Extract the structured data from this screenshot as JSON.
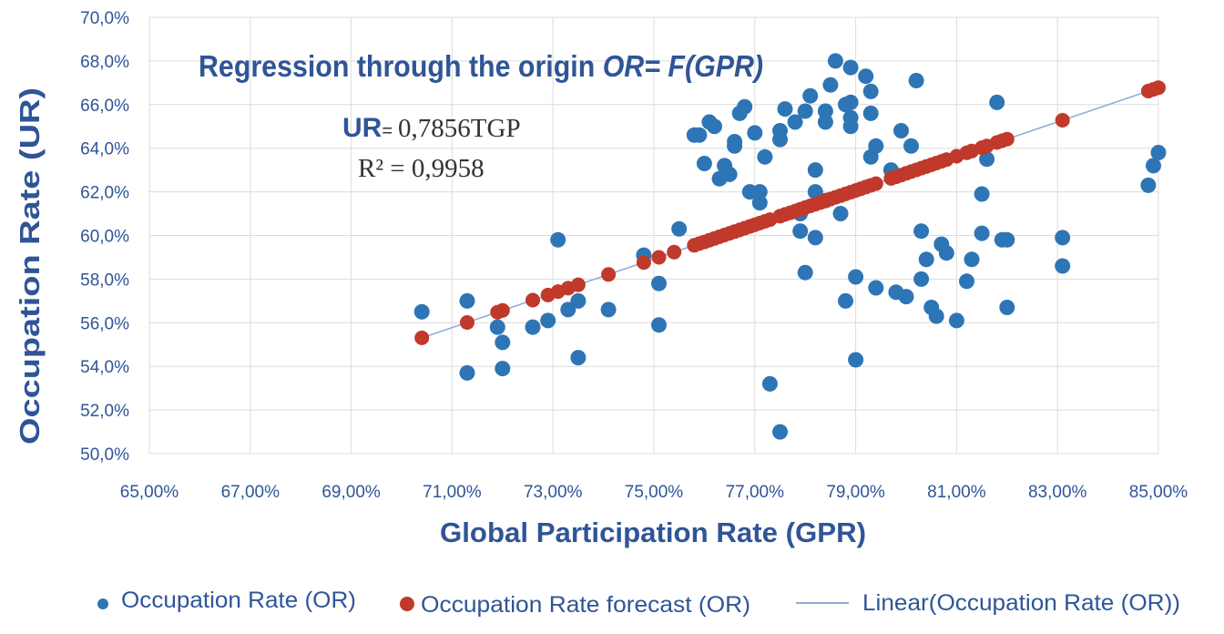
{
  "chart_data": {
    "type": "scatter",
    "title": "Regression through the origin",
    "title_formula": "OR= F(GPR)",
    "equation": {
      "lhs": "UR",
      "eq": "=",
      "rhs": "0,7856TGP",
      "r2_lhs": "R²",
      "r2_rhs": "= 0,9958"
    },
    "xlabel": "Global Participation  Rate (GPR)",
    "ylabel": "Occupation Rate  (UR)",
    "xlim": [
      65,
      85
    ],
    "ylim": [
      50,
      70
    ],
    "x_ticks": [
      {
        "value": 65,
        "label": "65,00%"
      },
      {
        "value": 67,
        "label": "67,00%"
      },
      {
        "value": 69,
        "label": "69,00%"
      },
      {
        "value": 71,
        "label": "71,00%"
      },
      {
        "value": 73,
        "label": "73,00%"
      },
      {
        "value": 75,
        "label": "75,00%"
      },
      {
        "value": 77,
        "label": "77,00%"
      },
      {
        "value": 79,
        "label": "79,00%"
      },
      {
        "value": 81,
        "label": "81,00%"
      },
      {
        "value": 83,
        "label": "83,00%"
      },
      {
        "value": 85,
        "label": "85,00%"
      }
    ],
    "y_ticks": [
      {
        "value": 50,
        "label": "50,0%"
      },
      {
        "value": 52,
        "label": "52,0%"
      },
      {
        "value": 54,
        "label": "54,0%"
      },
      {
        "value": 56,
        "label": "56,0%"
      },
      {
        "value": 58,
        "label": "58,0%"
      },
      {
        "value": 60,
        "label": "60,0%"
      },
      {
        "value": 62,
        "label": "62,0%"
      },
      {
        "value": 64,
        "label": "64,0%"
      },
      {
        "value": 66,
        "label": "66,0%"
      },
      {
        "value": 68,
        "label": "68,0%"
      },
      {
        "value": 70,
        "label": "70,0%"
      }
    ],
    "grid": true,
    "legend_position": "bottom",
    "series": [
      {
        "name": "Occupation Rate (OR)",
        "kind": "scatter",
        "color": "#2e75b6",
        "points": [
          [
            70.4,
            56.5
          ],
          [
            71.3,
            57.0
          ],
          [
            71.3,
            53.7
          ],
          [
            71.9,
            55.8
          ],
          [
            72.0,
            55.1
          ],
          [
            72.0,
            53.9
          ],
          [
            72.6,
            55.8
          ],
          [
            72.9,
            56.1
          ],
          [
            73.1,
            59.8
          ],
          [
            73.3,
            56.6
          ],
          [
            73.5,
            57.0
          ],
          [
            73.5,
            54.4
          ],
          [
            74.1,
            56.6
          ],
          [
            74.8,
            59.1
          ],
          [
            75.1,
            57.8
          ],
          [
            75.1,
            55.9
          ],
          [
            75.5,
            60.3
          ],
          [
            75.8,
            64.6
          ],
          [
            75.9,
            64.6
          ],
          [
            76.0,
            63.3
          ],
          [
            76.1,
            65.2
          ],
          [
            76.2,
            65.0
          ],
          [
            76.3,
            62.6
          ],
          [
            76.4,
            63.2
          ],
          [
            76.5,
            62.8
          ],
          [
            76.6,
            64.3
          ],
          [
            76.6,
            64.1
          ],
          [
            76.7,
            65.6
          ],
          [
            76.8,
            65.9
          ],
          [
            76.9,
            62.0
          ],
          [
            77.0,
            64.7
          ],
          [
            77.1,
            62.0
          ],
          [
            77.1,
            61.5
          ],
          [
            77.2,
            63.6
          ],
          [
            77.3,
            53.2
          ],
          [
            77.5,
            51.0
          ],
          [
            77.5,
            64.8
          ],
          [
            77.5,
            64.4
          ],
          [
            77.6,
            65.8
          ],
          [
            77.8,
            65.2
          ],
          [
            77.9,
            60.2
          ],
          [
            77.9,
            61.0
          ],
          [
            78.0,
            65.7
          ],
          [
            78.0,
            58.3
          ],
          [
            78.1,
            66.4
          ],
          [
            78.2,
            62.0
          ],
          [
            78.2,
            63.0
          ],
          [
            78.2,
            59.9
          ],
          [
            78.4,
            65.7
          ],
          [
            78.4,
            65.2
          ],
          [
            78.4,
            61.6
          ],
          [
            78.5,
            66.9
          ],
          [
            78.6,
            68.0
          ],
          [
            78.7,
            61.0
          ],
          [
            78.8,
            66.0
          ],
          [
            78.8,
            57.0
          ],
          [
            78.9,
            67.7
          ],
          [
            78.9,
            66.1
          ],
          [
            78.9,
            65.4
          ],
          [
            78.9,
            65.0
          ],
          [
            79.0,
            58.1
          ],
          [
            79.0,
            54.3
          ],
          [
            79.2,
            67.3
          ],
          [
            79.3,
            66.6
          ],
          [
            79.3,
            65.6
          ],
          [
            79.4,
            64.1
          ],
          [
            79.3,
            63.6
          ],
          [
            79.4,
            57.6
          ],
          [
            79.7,
            63.0
          ],
          [
            79.8,
            57.4
          ],
          [
            79.9,
            64.8
          ],
          [
            80.0,
            57.2
          ],
          [
            80.1,
            64.1
          ],
          [
            80.2,
            67.1
          ],
          [
            80.3,
            60.2
          ],
          [
            80.3,
            58.0
          ],
          [
            80.4,
            58.9
          ],
          [
            80.5,
            56.7
          ],
          [
            80.6,
            56.3
          ],
          [
            80.7,
            59.6
          ],
          [
            80.8,
            59.2
          ],
          [
            81.0,
            56.1
          ],
          [
            81.2,
            57.9
          ],
          [
            81.3,
            58.9
          ],
          [
            81.5,
            60.1
          ],
          [
            81.5,
            61.9
          ],
          [
            81.6,
            63.5
          ],
          [
            81.8,
            66.1
          ],
          [
            81.9,
            59.8
          ],
          [
            82.0,
            59.8
          ],
          [
            82.0,
            56.7
          ],
          [
            83.1,
            59.9
          ],
          [
            83.1,
            58.6
          ],
          [
            84.8,
            62.3
          ],
          [
            84.9,
            63.2
          ],
          [
            85.0,
            63.8
          ]
        ]
      },
      {
        "name": "Occupation Rate forecast (OR)",
        "kind": "scatter",
        "color": "#c0392b",
        "x_values": [
          70.4,
          71.3,
          71.9,
          72.0,
          72.6,
          72.9,
          73.1,
          73.3,
          73.5,
          74.1,
          74.8,
          75.1,
          75.4,
          75.8,
          75.9,
          76.0,
          76.1,
          76.2,
          76.3,
          76.4,
          76.5,
          76.6,
          76.7,
          76.8,
          76.9,
          77.0,
          77.1,
          77.2,
          77.3,
          77.5,
          77.6,
          77.7,
          77.8,
          77.9,
          78.0,
          78.1,
          78.2,
          78.3,
          78.4,
          78.5,
          78.6,
          78.7,
          78.8,
          78.9,
          79.0,
          79.1,
          79.2,
          79.3,
          79.4,
          79.7,
          79.8,
          79.9,
          80.0,
          80.1,
          80.2,
          80.3,
          80.4,
          80.5,
          80.6,
          80.7,
          80.8,
          81.0,
          81.2,
          81.3,
          81.5,
          81.6,
          81.8,
          81.9,
          82.0,
          83.1,
          84.8,
          84.9,
          85.0
        ],
        "slope": 0.7856
      },
      {
        "name": "Linear(Occupation Rate (OR))",
        "kind": "line",
        "color": "#8eaadb",
        "x_range": [
          70.4,
          85.0
        ],
        "slope": 0.7856
      }
    ]
  }
}
